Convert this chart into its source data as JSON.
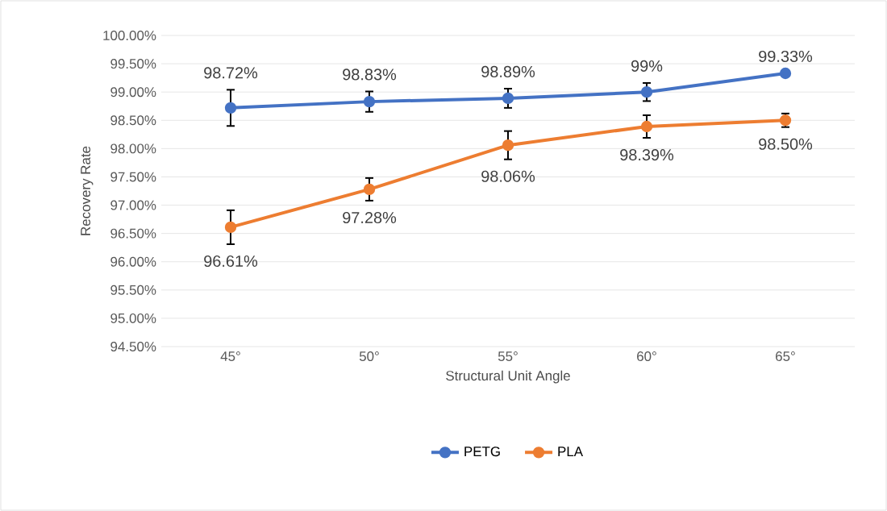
{
  "chart_data": {
    "type": "line",
    "xlabel": "Structural Unit Angle",
    "ylabel": "Recovery Rate",
    "categories": [
      "45°",
      "50°",
      "55°",
      "60°",
      "65°"
    ],
    "series": [
      {
        "name": "PETG",
        "color": "#4472c4",
        "values": [
          98.72,
          98.83,
          98.89,
          99,
          99.33
        ],
        "errors": [
          0.32,
          0.18,
          0.17,
          0.16,
          null
        ],
        "value_labels": [
          "98.72%",
          "98.83%",
          "98.89%",
          "99%",
          "99.33%"
        ]
      },
      {
        "name": "PLA",
        "color": "#ed7d31",
        "values": [
          96.61,
          97.28,
          98.06,
          98.39,
          98.5
        ],
        "errors": [
          0.3,
          0.2,
          0.25,
          0.2,
          0.12
        ],
        "value_labels": [
          "96.61%",
          "97.28%",
          "98.06%",
          "98.39%",
          "98.50%"
        ]
      }
    ],
    "ylim": [
      94.5,
      100
    ],
    "yticks": [
      {
        "value": 94.5,
        "label": "94.50%"
      },
      {
        "value": 95,
        "label": "95.00%"
      },
      {
        "value": 95.5,
        "label": "95.50%"
      },
      {
        "value": 96,
        "label": "96.00%"
      },
      {
        "value": 96.5,
        "label": "96.50%"
      },
      {
        "value": 97,
        "label": "97.00%"
      },
      {
        "value": 97.5,
        "label": "97.50%"
      },
      {
        "value": 98,
        "label": "98.00%"
      },
      {
        "value": 98.5,
        "label": "98.50%"
      },
      {
        "value": 99,
        "label": "99.00%"
      },
      {
        "value": 99.5,
        "label": "99.50%"
      },
      {
        "value": 100,
        "label": "100.00%"
      }
    ],
    "grid": "y",
    "legend": "bottom",
    "marker": "circle",
    "line_style": "solid"
  }
}
